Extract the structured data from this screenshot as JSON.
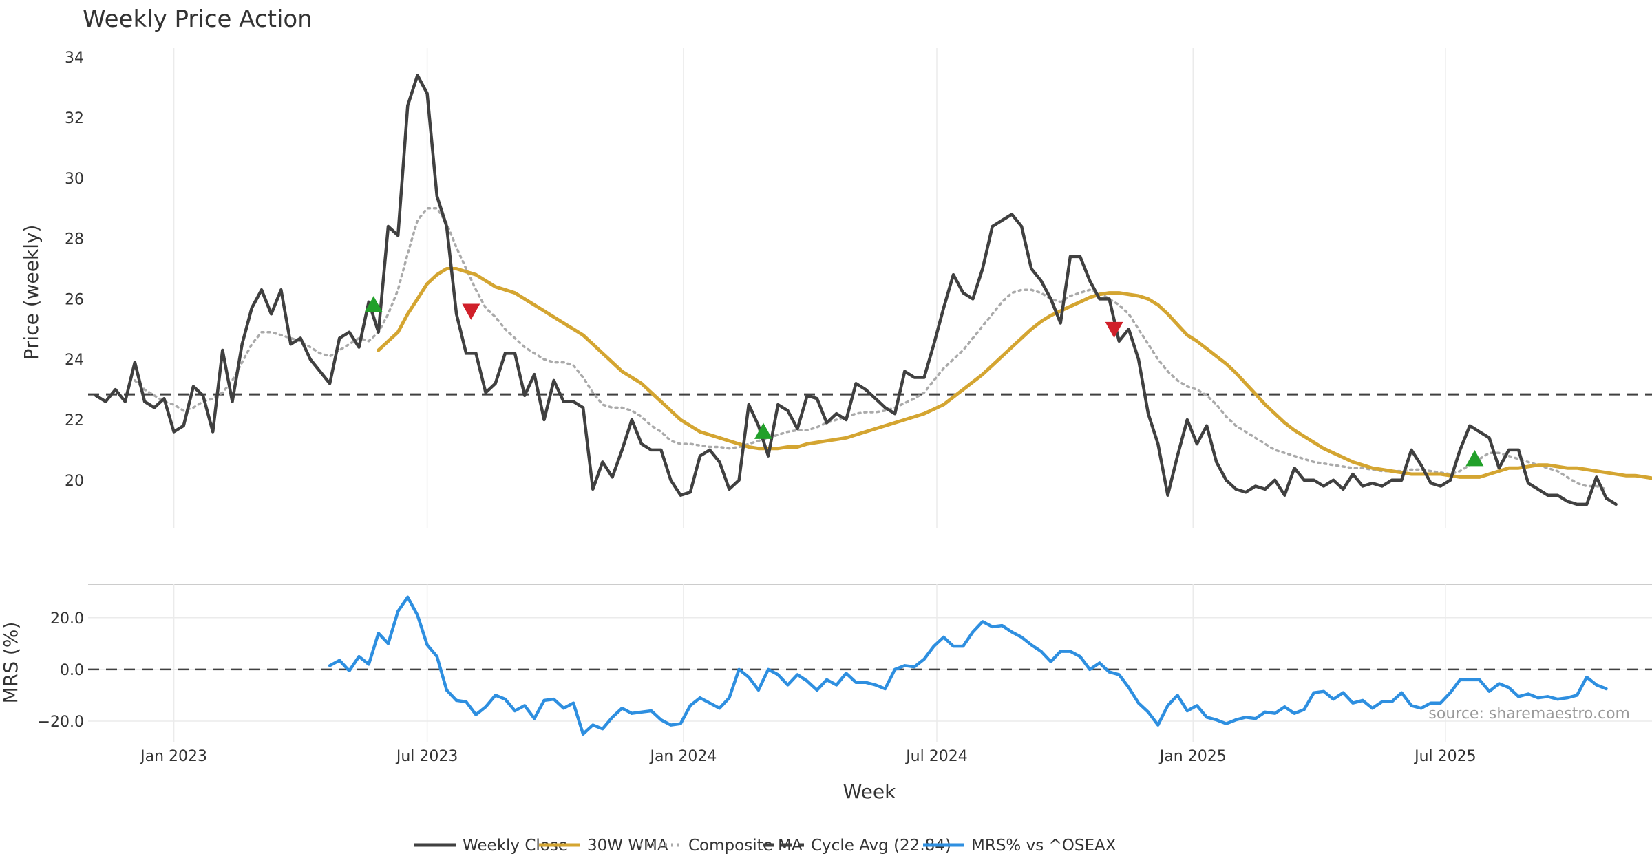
{
  "chart_data": {
    "type": "line",
    "title": "Weekly Price Action",
    "xlabel": "Week",
    "source": "source: sharemaestro.com",
    "x_ticks": [
      {
        "label": "Jan 2023",
        "week": 4
      },
      {
        "label": "Jul 2023",
        "week": 30
      },
      {
        "label": "Jan 2024",
        "week": 56.3
      },
      {
        "label": "Jul 2024",
        "week": 82.3
      },
      {
        "label": "Jan 2025",
        "week": 108.6
      },
      {
        "label": "Jul 2025",
        "week": 134.5
      }
    ],
    "x_range": [
      -4.8,
      155.7
    ],
    "price_panel": {
      "ylabel": "Price (weekly)",
      "ylim": [
        18.4,
        34.3
      ],
      "yticks": [
        20,
        22,
        24,
        26,
        28,
        30,
        32,
        34
      ],
      "ytick_labels": [
        "20",
        "22",
        "24",
        "26",
        "28",
        "30",
        "32",
        "34"
      ],
      "cycle_avg": 22.84,
      "series": [
        {
          "name": "Weekly Close",
          "color": "#404040",
          "style": "solid",
          "start_week": -4,
          "values": [
            22.8,
            22.6,
            23.0,
            22.6,
            23.9,
            22.6,
            22.4,
            22.7,
            21.6,
            21.8,
            23.1,
            22.8,
            21.6,
            24.3,
            22.6,
            24.5,
            25.7,
            26.3,
            25.5,
            26.3,
            24.5,
            24.7,
            24.0,
            23.6,
            23.2,
            24.7,
            24.9,
            24.4,
            25.9,
            24.9,
            28.4,
            28.1,
            32.4,
            33.4,
            32.8,
            29.4,
            28.4,
            25.5,
            24.2,
            24.2,
            22.9,
            23.2,
            24.2,
            24.2,
            22.8,
            23.5,
            22.0,
            23.3,
            22.6,
            22.6,
            22.4,
            19.7,
            20.6,
            20.1,
            21.0,
            22.0,
            21.2,
            21.0,
            21.0,
            20.0,
            19.5,
            19.6,
            20.8,
            21.0,
            20.6,
            19.7,
            20.0,
            22.5,
            21.8,
            20.8,
            22.5,
            22.3,
            21.7,
            22.8,
            22.7,
            21.9,
            22.2,
            22.0,
            23.2,
            23.0,
            22.7,
            22.4,
            22.2,
            23.6,
            23.4,
            23.4,
            24.5,
            25.7,
            26.8,
            26.2,
            26.0,
            27.0,
            28.4,
            28.6,
            28.8,
            28.4,
            27.0,
            26.6,
            26.0,
            25.2,
            27.4,
            27.4,
            26.6,
            26.0,
            26.0,
            24.6,
            25.0,
            24.0,
            22.2,
            21.2,
            19.5,
            20.8,
            22.0,
            21.2,
            21.8,
            20.6,
            20.0,
            19.7,
            19.6,
            19.8,
            19.7,
            20.0,
            19.5,
            20.4,
            20.0,
            20.0,
            19.8,
            20.0,
            19.7,
            20.2,
            19.8,
            19.9,
            19.8,
            20.0,
            20.0,
            21.0,
            20.5,
            19.9,
            19.8,
            20.0,
            21.0,
            21.8,
            21.6,
            21.4,
            20.4,
            21.0,
            21.0,
            19.9,
            19.7,
            19.5,
            19.5,
            19.3,
            19.2,
            19.2,
            20.1,
            19.4,
            19.2
          ]
        },
        {
          "name": "30W WMA",
          "color": "#D4A531",
          "style": "solid",
          "start_week": 25,
          "values": [
            24.3,
            24.6,
            24.9,
            25.5,
            26.0,
            26.5,
            26.8,
            27.0,
            27.0,
            26.9,
            26.8,
            26.6,
            26.4,
            26.3,
            26.2,
            26.0,
            25.8,
            25.6,
            25.4,
            25.2,
            25.0,
            24.8,
            24.5,
            24.2,
            23.9,
            23.6,
            23.4,
            23.2,
            22.9,
            22.6,
            22.3,
            22.0,
            21.8,
            21.6,
            21.5,
            21.4,
            21.3,
            21.2,
            21.1,
            21.05,
            21.05,
            21.05,
            21.1,
            21.1,
            21.2,
            21.25,
            21.3,
            21.35,
            21.4,
            21.5,
            21.6,
            21.7,
            21.8,
            21.9,
            22.0,
            22.1,
            22.2,
            22.35,
            22.5,
            22.75,
            23.0,
            23.25,
            23.5,
            23.8,
            24.1,
            24.4,
            24.7,
            25.0,
            25.25,
            25.45,
            25.6,
            25.75,
            25.9,
            26.05,
            26.15,
            26.2,
            26.2,
            26.15,
            26.1,
            26.0,
            25.8,
            25.5,
            25.15,
            24.8,
            24.6,
            24.35,
            24.1,
            23.85,
            23.55,
            23.2,
            22.85,
            22.5,
            22.2,
            21.9,
            21.65,
            21.45,
            21.25,
            21.05,
            20.9,
            20.75,
            20.6,
            20.5,
            20.4,
            20.35,
            20.3,
            20.25,
            20.2,
            20.2,
            20.2,
            20.2,
            20.15,
            20.1,
            20.1,
            20.1,
            20.2,
            20.3,
            20.4,
            20.4,
            20.45,
            20.5,
            20.5,
            20.45,
            20.4,
            20.4,
            20.35,
            20.3,
            20.25,
            20.2,
            20.15,
            20.15,
            20.1,
            20.05
          ]
        },
        {
          "name": "Composite MA",
          "color": "#AAAAAA",
          "style": "dotted",
          "start_week": 0,
          "values": [
            23.3,
            23.0,
            22.8,
            22.6,
            22.5,
            22.3,
            22.4,
            22.6,
            22.7,
            22.9,
            23.3,
            23.9,
            24.5,
            24.9,
            24.9,
            24.8,
            24.7,
            24.6,
            24.4,
            24.2,
            24.1,
            24.3,
            24.5,
            24.7,
            24.6,
            24.9,
            25.5,
            26.3,
            27.5,
            28.6,
            29.0,
            29.0,
            28.5,
            27.7,
            27.0,
            26.3,
            25.7,
            25.4,
            25.0,
            24.7,
            24.4,
            24.2,
            24.0,
            23.9,
            23.9,
            23.8,
            23.4,
            22.9,
            22.5,
            22.4,
            22.4,
            22.3,
            22.1,
            21.8,
            21.6,
            21.3,
            21.2,
            21.2,
            21.15,
            21.1,
            21.1,
            21.05,
            21.1,
            21.2,
            21.3,
            21.4,
            21.5,
            21.6,
            21.65,
            21.65,
            21.75,
            21.9,
            22.0,
            22.1,
            22.2,
            22.25,
            22.25,
            22.3,
            22.4,
            22.55,
            22.7,
            22.9,
            23.3,
            23.7,
            24.0,
            24.3,
            24.7,
            25.1,
            25.5,
            25.9,
            26.2,
            26.3,
            26.3,
            26.2,
            26.0,
            25.9,
            26.1,
            26.2,
            26.3,
            26.2,
            26.0,
            25.8,
            25.5,
            25.0,
            24.5,
            24.0,
            23.6,
            23.3,
            23.1,
            23.0,
            22.8,
            22.5,
            22.1,
            21.8,
            21.6,
            21.4,
            21.2,
            21.0,
            20.9,
            20.8,
            20.7,
            20.6,
            20.55,
            20.5,
            20.45,
            20.4,
            20.4,
            20.35,
            20.3,
            20.3,
            20.3,
            20.35,
            20.35,
            20.3,
            20.25,
            20.2,
            20.3,
            20.5,
            20.7,
            20.9,
            20.9,
            20.8,
            20.7,
            20.6,
            20.5,
            20.4,
            20.3,
            20.1,
            19.9,
            19.8,
            19.8,
            19.7
          ]
        },
        {
          "name": "Cycle Avg (22.84)",
          "color": "#404040",
          "style": "dashed",
          "value": 22.84
        }
      ],
      "markers": [
        {
          "type": "buy",
          "week": 24.5,
          "value": 25.8,
          "color": "#22A02A"
        },
        {
          "type": "sell",
          "week": 34.5,
          "value": 25.6,
          "color": "#D0202A"
        },
        {
          "type": "buy",
          "week": 64.5,
          "value": 21.6,
          "color": "#22A02A"
        },
        {
          "type": "sell",
          "week": 100.5,
          "value": 25.0,
          "color": "#D0202A"
        },
        {
          "type": "buy",
          "week": 137.5,
          "value": 20.7,
          "color": "#22A02A"
        }
      ]
    },
    "mrs_panel": {
      "ylabel": "MRS (%)",
      "ylim": [
        -28,
        33
      ],
      "yticks": [
        20,
        0,
        -20
      ],
      "ytick_labels": [
        "20.0",
        "0.0",
        "−20.0"
      ],
      "zero_line": 0,
      "series": [
        {
          "name": "MRS% vs ^OSEAX",
          "color": "#2E8FE0",
          "style": "solid",
          "start_week": 20,
          "values": [
            1.5,
            3.5,
            -0.5,
            5.0,
            2.0,
            14.0,
            10.0,
            22.5,
            28.0,
            21.0,
            9.5,
            5.0,
            -8.0,
            -12.0,
            -12.5,
            -17.5,
            -14.5,
            -10.0,
            -11.5,
            -16.0,
            -14.0,
            -19.0,
            -12.0,
            -11.5,
            -15.0,
            -13.0,
            -25.0,
            -21.5,
            -23.0,
            -18.5,
            -15.0,
            -17.0,
            -16.5,
            -16.0,
            -19.5,
            -21.5,
            -21.0,
            -14.0,
            -11.0,
            -13.0,
            -15.0,
            -11.0,
            0.0,
            -3.0,
            -8.0,
            0.0,
            -2.0,
            -6.0,
            -2.0,
            -4.5,
            -8.0,
            -4.0,
            -6.0,
            -1.5,
            -5.0,
            -5.0,
            -6.0,
            -7.5,
            0.0,
            1.5,
            1.0,
            4.0,
            9.0,
            12.5,
            9.0,
            9.0,
            14.5,
            18.5,
            16.5,
            17.0,
            14.5,
            12.5,
            9.5,
            7.0,
            3.0,
            7.0,
            7.0,
            5.0,
            0.0,
            2.5,
            -1.0,
            -2.0,
            -7.0,
            -13.0,
            -16.5,
            -21.5,
            -14.0,
            -10.0,
            -16.0,
            -14.0,
            -18.5,
            -19.5,
            -21.0,
            -19.5,
            -18.5,
            -19.0,
            -16.5,
            -17.0,
            -14.5,
            -17.0,
            -15.5,
            -9.0,
            -8.5,
            -11.5,
            -9.0,
            -13.0,
            -12.0,
            -15.0,
            -12.5,
            -12.5,
            -9.0,
            -14.0,
            -15.0,
            -13.0,
            -13.0,
            -9.0,
            -4.0,
            -4.0,
            -4.0,
            -8.5,
            -5.5,
            -7.0,
            -10.5,
            -9.5,
            -11.0,
            -10.5,
            -11.5,
            -11.0,
            -10.0,
            -3.0,
            -6.0,
            -7.5
          ]
        }
      ]
    },
    "legend": [
      {
        "name": "Weekly Close",
        "color": "#404040",
        "style": "solid"
      },
      {
        "name": "30W WMA",
        "color": "#D4A531",
        "style": "solid"
      },
      {
        "name": "Composite MA",
        "color": "#AAAAAA",
        "style": "dotted"
      },
      {
        "name": "Cycle Avg (22.84)",
        "color": "#404040",
        "style": "dashed"
      },
      {
        "name": "MRS% vs ^OSEAX",
        "color": "#2E8FE0",
        "style": "solid"
      }
    ]
  }
}
